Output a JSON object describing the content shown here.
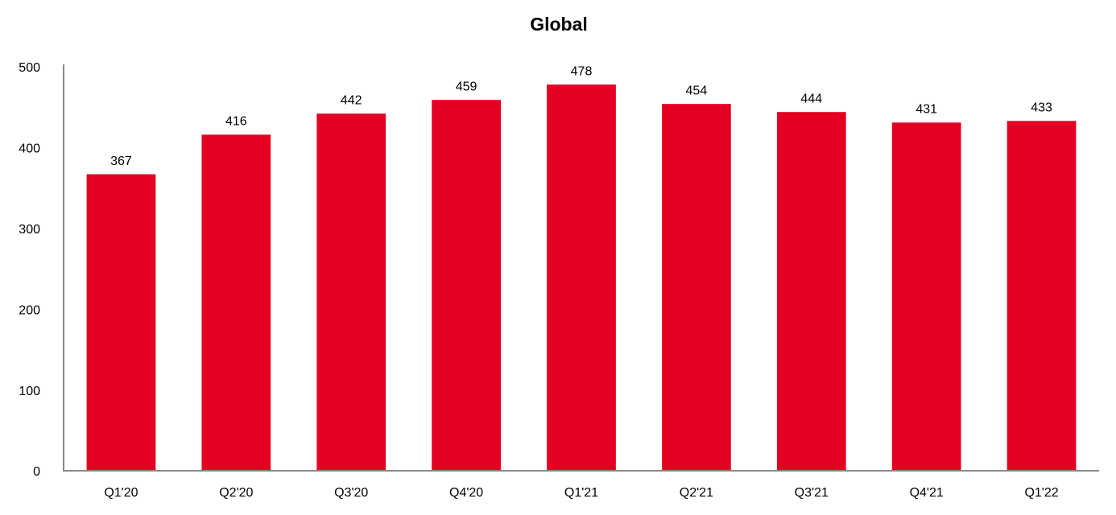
{
  "chart_data": {
    "type": "bar",
    "title": "Global",
    "categories": [
      "Q1'20",
      "Q2'20",
      "Q3'20",
      "Q4'20",
      "Q1'21",
      "Q2'21",
      "Q3'21",
      "Q4'21",
      "Q1'22"
    ],
    "values": [
      367,
      416,
      442,
      459,
      478,
      454,
      444,
      431,
      433
    ],
    "color": "#e40021",
    "ylim": [
      0,
      500
    ],
    "yticks": [
      0,
      100,
      200,
      300,
      400,
      500
    ],
    "grid": false
  }
}
